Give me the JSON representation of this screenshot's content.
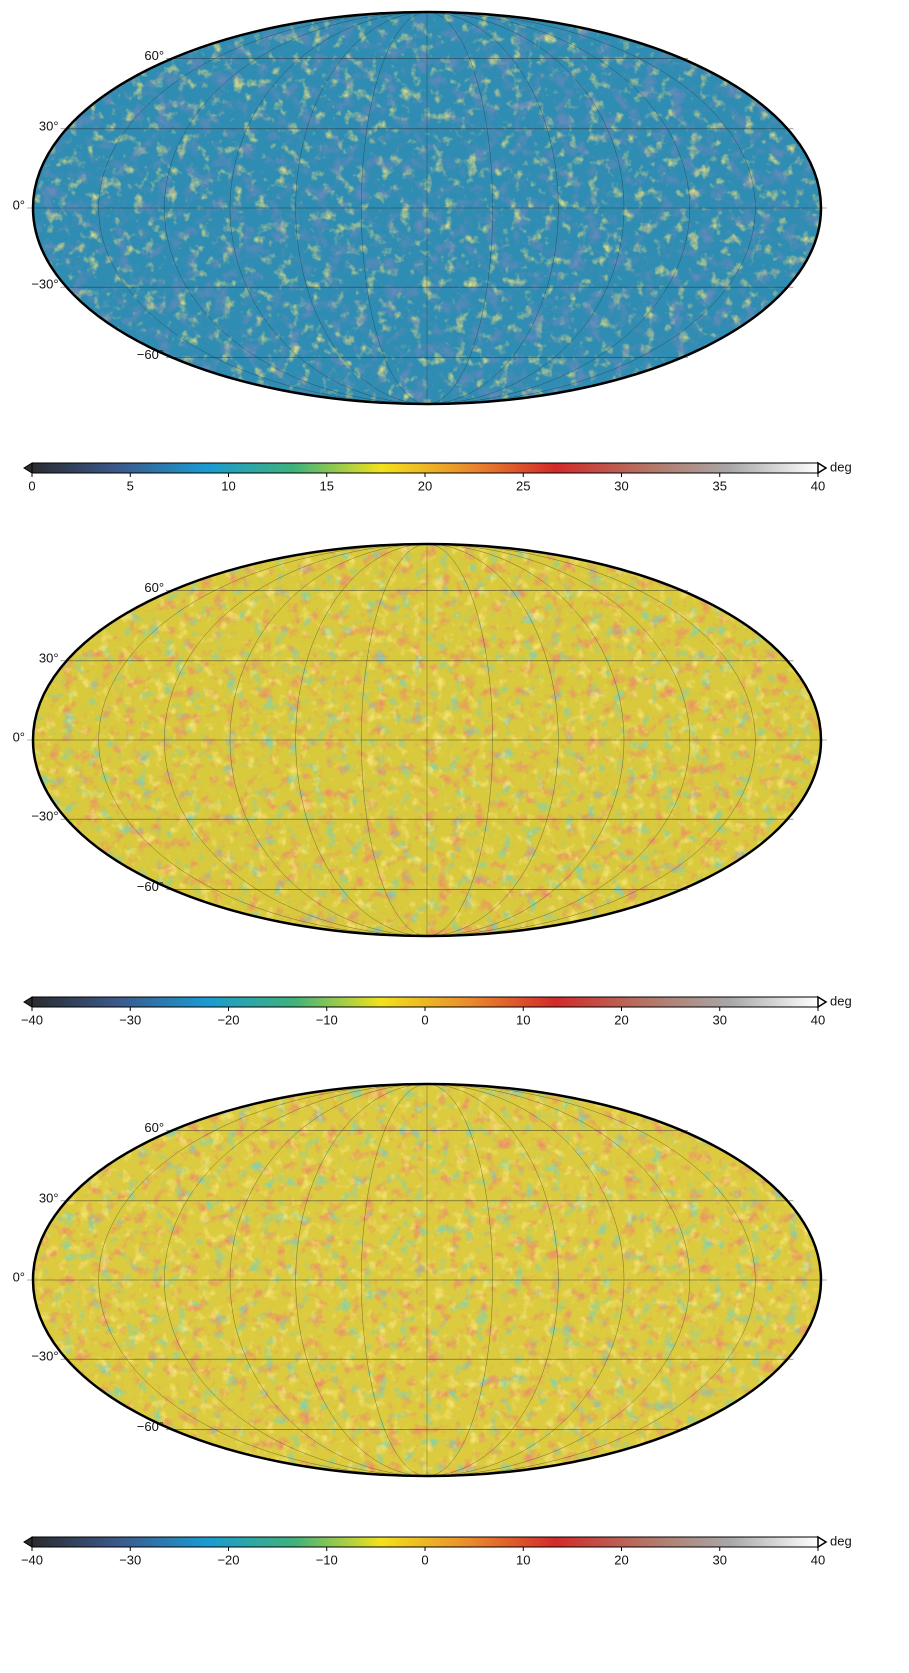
{
  "colormap": [
    "#2b2b30",
    "#3b5a8c",
    "#1a9bd2",
    "#3fb27c",
    "#f2e21c",
    "#ea8c2c",
    "#d22a2a",
    "#b57262",
    "#a8a8a8",
    "#ffffff"
  ],
  "panels": [
    {
      "lat_ticks": [
        {
          "value": 60,
          "label": "60°"
        },
        {
          "value": 30,
          "label": "30°"
        },
        {
          "value": 0,
          "label": "0°"
        },
        {
          "value": -30,
          "label": "−30°"
        },
        {
          "value": -60,
          "label": "−60°"
        }
      ],
      "colorbar": {
        "lim": [
          0,
          40
        ],
        "ticks": [
          0,
          5,
          10,
          15,
          20,
          25,
          30,
          35,
          40
        ],
        "unit": "deg"
      }
    },
    {
      "lat_ticks": [
        {
          "value": 60,
          "label": "60°"
        },
        {
          "value": 30,
          "label": "30°"
        },
        {
          "value": 0,
          "label": "0°"
        },
        {
          "value": -30,
          "label": "−30°"
        },
        {
          "value": -60,
          "label": "−60°"
        }
      ],
      "colorbar": {
        "lim": [
          -40,
          40
        ],
        "ticks": [
          {
            "value": -40,
            "label": "−40"
          },
          {
            "value": -30,
            "label": "−30"
          },
          {
            "value": -20,
            "label": "−20"
          },
          {
            "value": -10,
            "label": "−10"
          },
          0,
          10,
          20,
          30,
          40
        ],
        "unit": "deg"
      }
    },
    {
      "lat_ticks": [
        {
          "value": 60,
          "label": "60°"
        },
        {
          "value": 30,
          "label": "30°"
        },
        {
          "value": 0,
          "label": "0°"
        },
        {
          "value": -30,
          "label": "−30°"
        },
        {
          "value": -60,
          "label": "−60°"
        }
      ],
      "colorbar": {
        "lim": [
          -40,
          40
        ],
        "ticks": [
          {
            "value": -40,
            "label": "−40"
          },
          {
            "value": -30,
            "label": "−30"
          },
          {
            "value": -20,
            "label": "−20"
          },
          {
            "value": -10,
            "label": "−10"
          },
          0,
          10,
          20,
          30,
          40
        ],
        "unit": "deg"
      }
    }
  ]
}
